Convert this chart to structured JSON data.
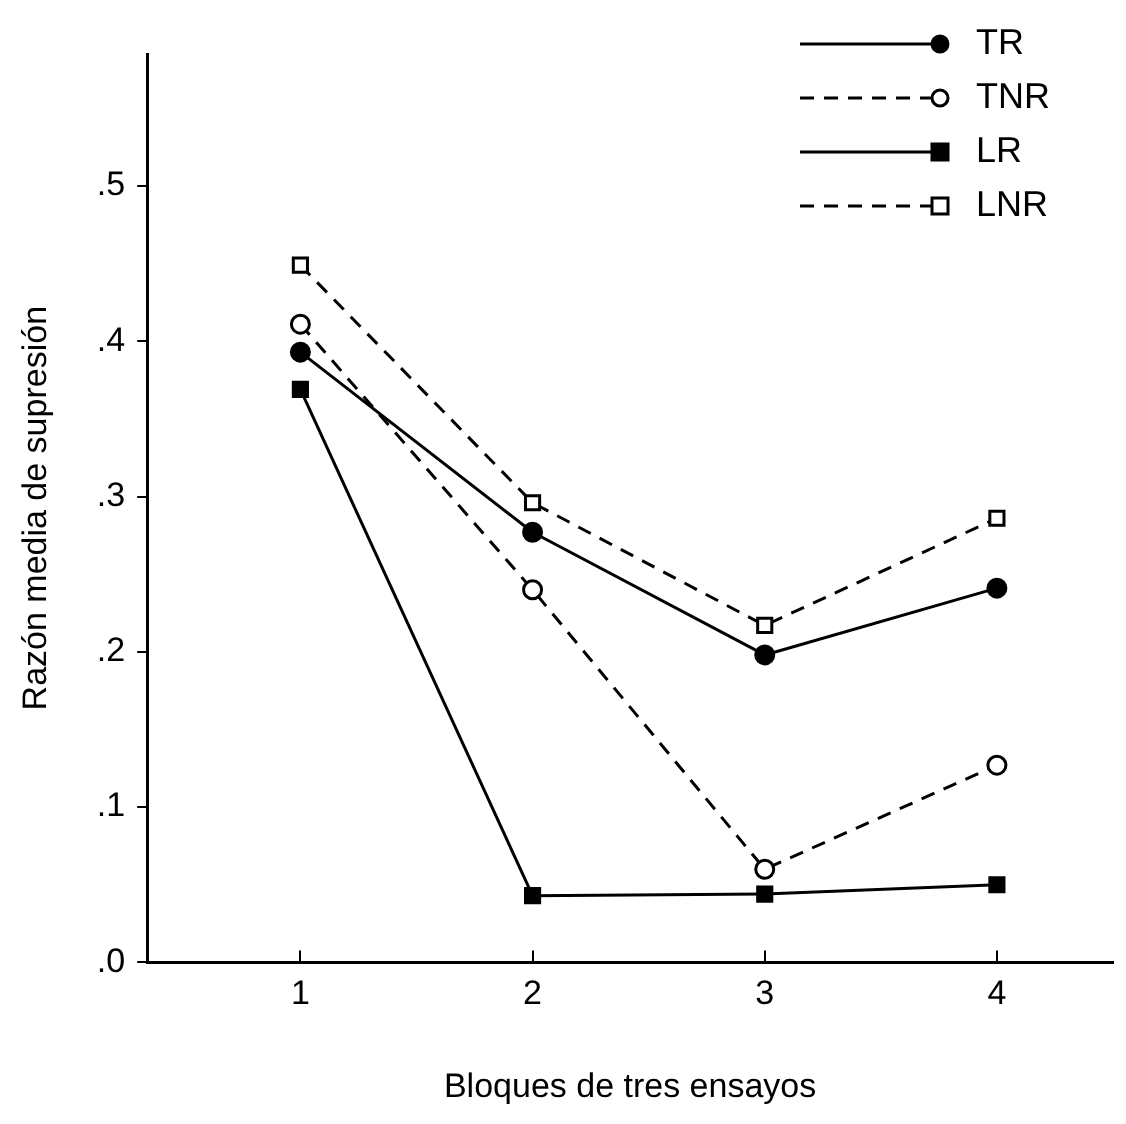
{
  "chart_data": {
    "type": "line",
    "xlabel": "Bloques de tres ensayos",
    "ylabel": "Razón media de supresión",
    "x": [
      1,
      2,
      3,
      4
    ],
    "xlim": [
      0.34,
      4.5
    ],
    "xticks": [
      1,
      2,
      3,
      4
    ],
    "ylim": [
      0,
      0.585
    ],
    "yticks": [
      {
        "value": 0,
        "label": ".0"
      },
      {
        "value": 0.1,
        "label": ".1"
      },
      {
        "value": 0.2,
        "label": ".2"
      },
      {
        "value": 0.3,
        "label": ".3"
      },
      {
        "value": 0.4,
        "label": ".4"
      },
      {
        "value": 0.5,
        "label": ".5"
      }
    ],
    "grid": false,
    "legend": "top right",
    "series": [
      {
        "name": "TR",
        "color": "#000000",
        "marker": "circle",
        "line_style": "solid",
        "values": [
          0.393,
          0.277,
          0.198,
          0.241
        ]
      },
      {
        "name": "TNR",
        "color": "#000000",
        "marker": "circle",
        "line_style": "dashed",
        "values": [
          0.411,
          0.24,
          0.06,
          0.127
        ]
      },
      {
        "name": "LR",
        "color": "#000000",
        "marker": "square",
        "line_style": "solid",
        "values": [
          0.369,
          0.043,
          0.044,
          0.05
        ]
      },
      {
        "name": "LNR",
        "color": "#000000",
        "marker": "square",
        "line_style": "dashed",
        "values": [
          0.449,
          0.296,
          0.217,
          0.286
        ]
      }
    ]
  }
}
